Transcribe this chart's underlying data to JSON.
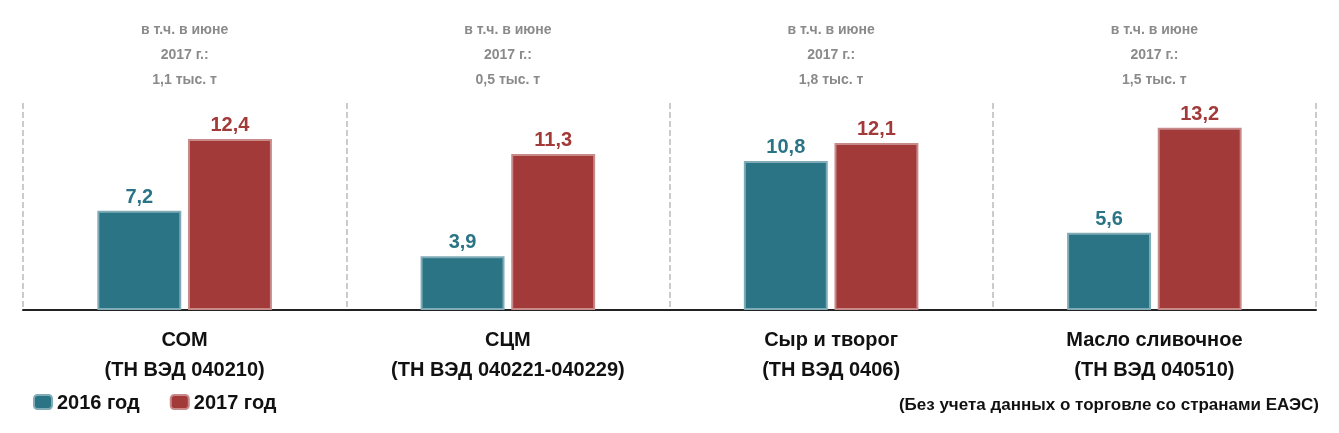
{
  "chart_data": {
    "type": "bar",
    "categories": [
      "СОМ\n(ТН ВЭД 040210)",
      "СЦМ\n(ТН ВЭД 040221-040229)",
      "Сыр и творог\n(ТН ВЭД 0406)",
      "Масло сливочное\n(ТН ВЭД 040510)"
    ],
    "series": [
      {
        "name": "2016 год",
        "color": "#2a7485",
        "values": [
          7.2,
          3.9,
          10.8,
          5.6
        ],
        "value_labels": [
          "7,2",
          "3,9",
          "10,8",
          "5,6"
        ]
      },
      {
        "name": "2017 год",
        "color": "#a33a3a",
        "values": [
          12.4,
          11.3,
          12.1,
          13.2
        ],
        "value_labels": [
          "12,4",
          "11,3",
          "12,1",
          "13,2"
        ]
      }
    ],
    "annotations": [
      "в т.ч. в июне\n2017 г.:\n1,1 тыс. т",
      "в т.ч. в июне\n2017 г.:\n0,5 тыс. т",
      "в т.ч. в июне\n2017 г.:\n1,8 тыс. т",
      "в т.ч. в июне\n2017 г.:\n1,5 тыс. т",
      "(Без учета данных о торговле со странами ЕАЭС)"
    ],
    "grid": "x",
    "legend": "bottom left"
  }
}
